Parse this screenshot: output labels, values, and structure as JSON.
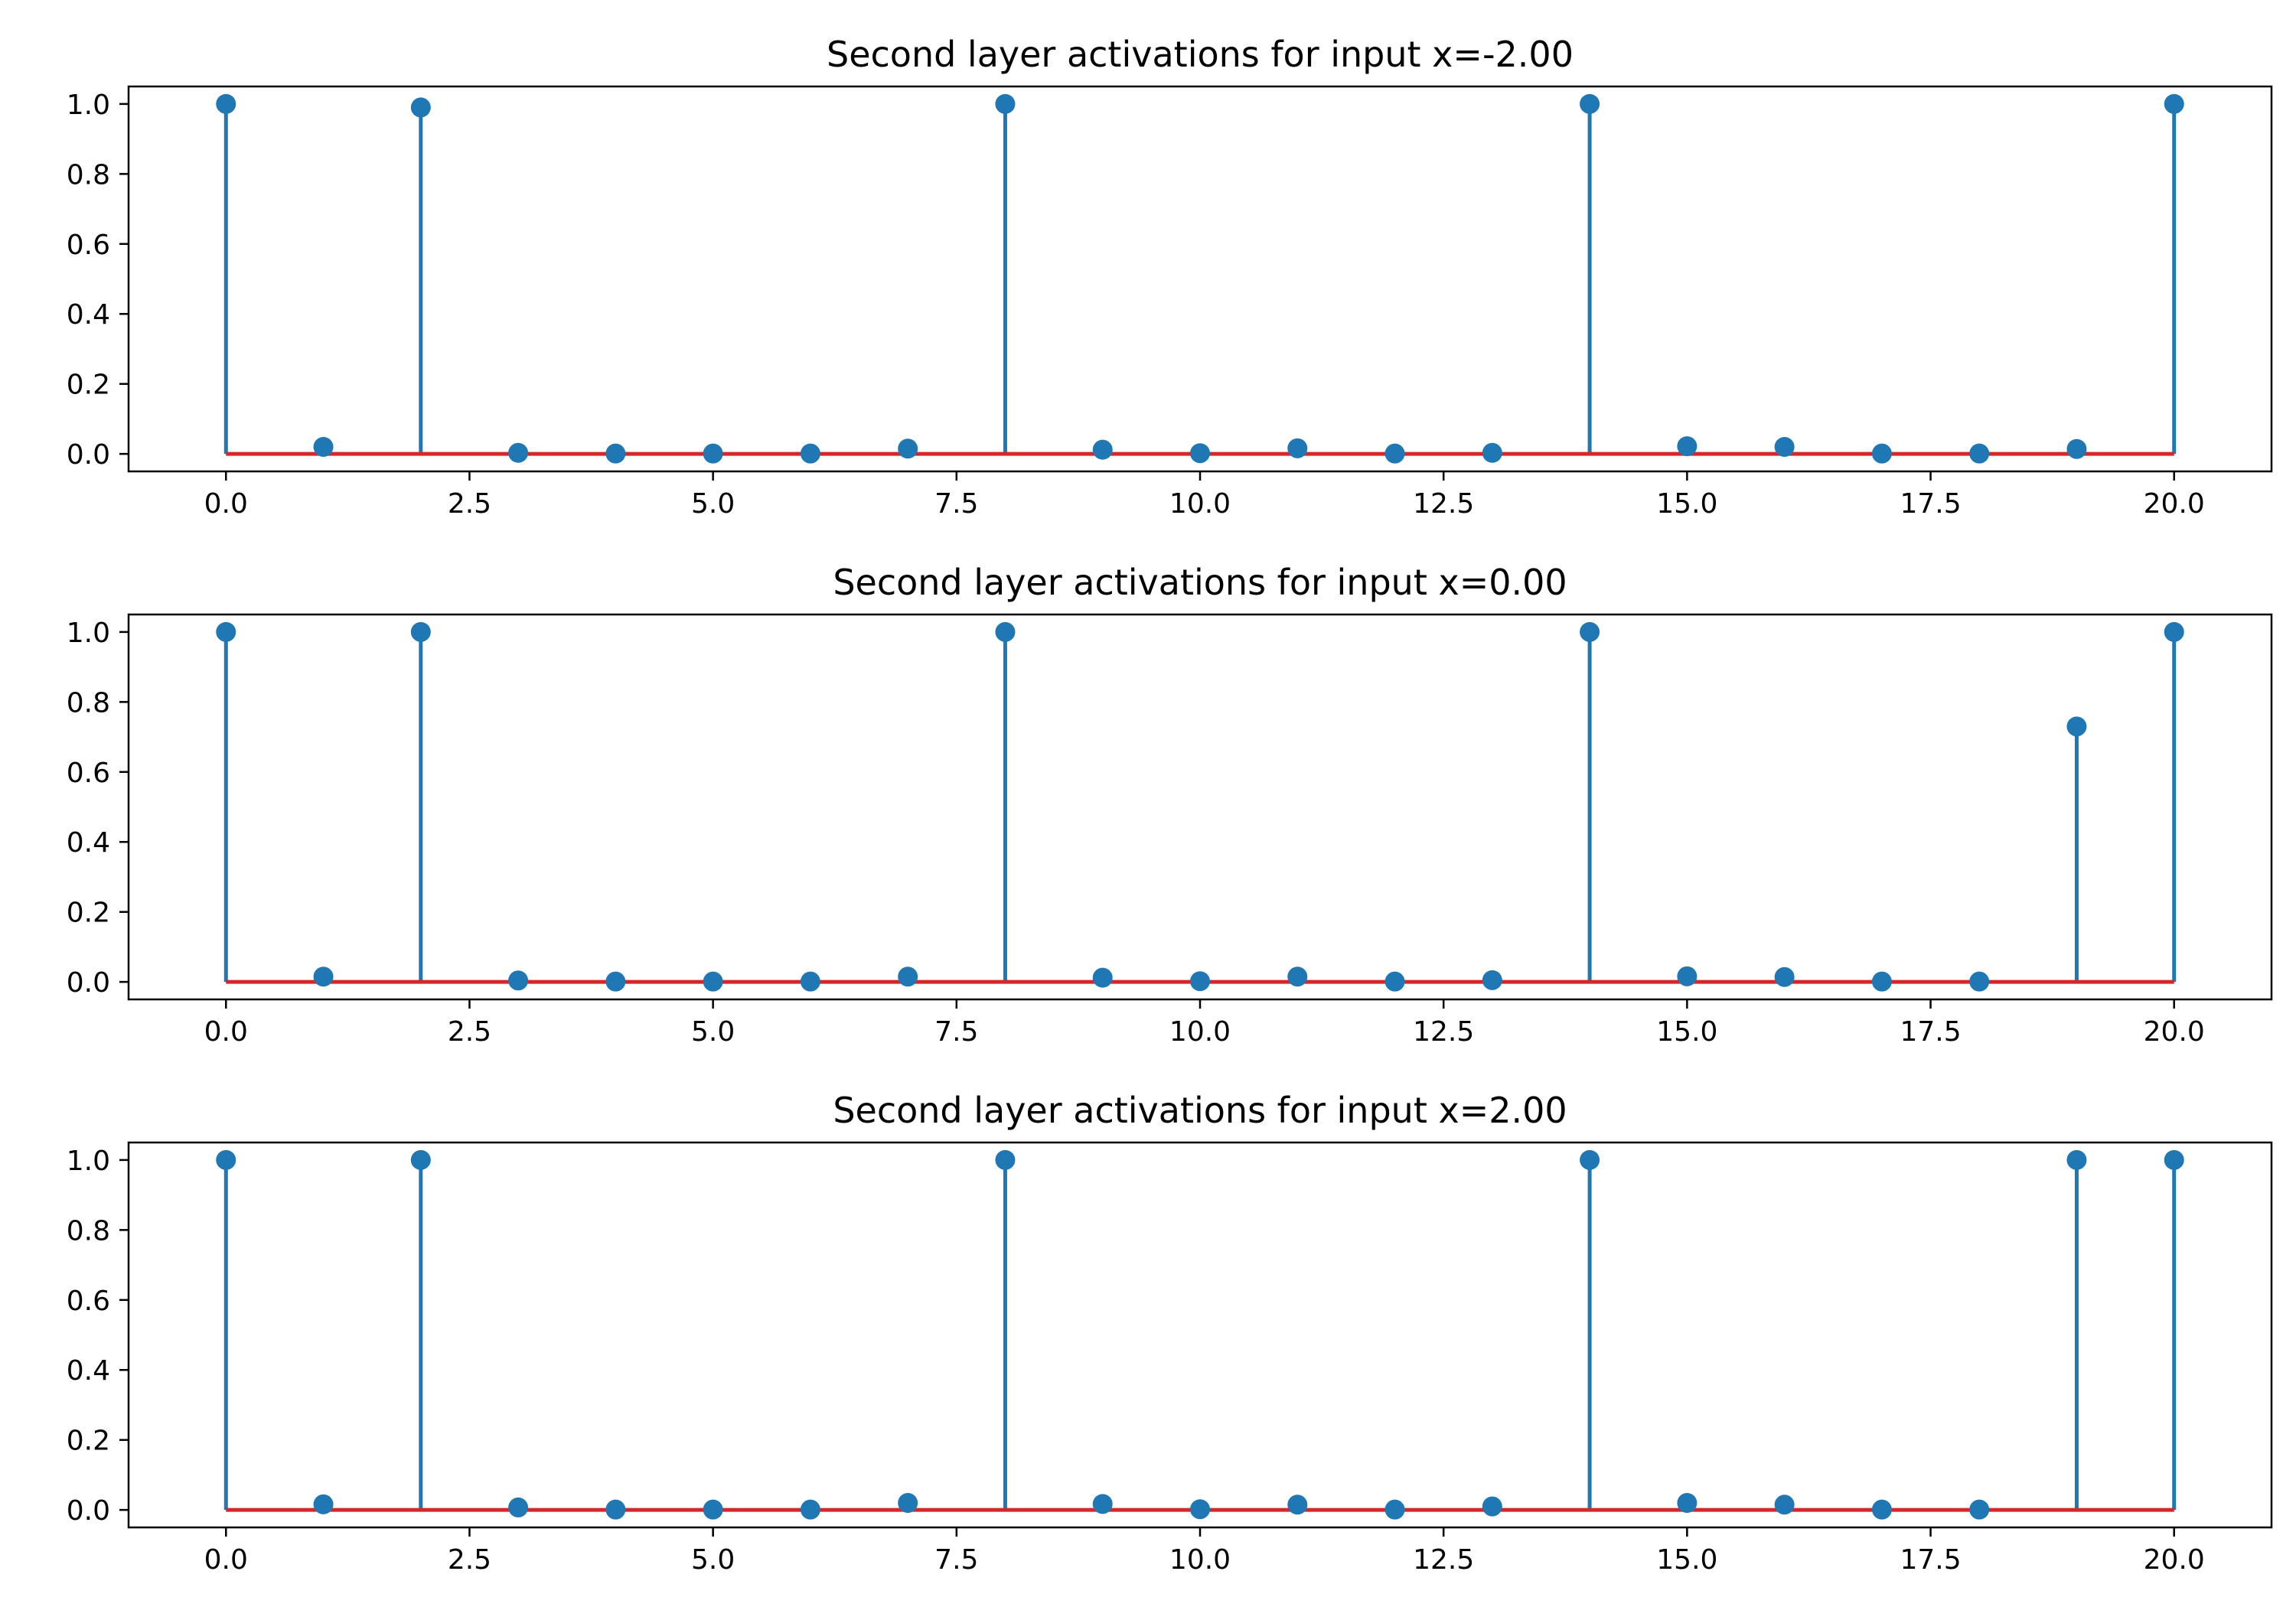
{
  "colors": {
    "stem": "#1f77b4",
    "marker": "#1f77b4",
    "baseline": "#d62728"
  },
  "chart_data": [
    {
      "type": "stem",
      "title": "Second layer activations for input x=-2.00",
      "xlabel": "",
      "ylabel": "",
      "xlim": [
        -1.0,
        21.0
      ],
      "ylim": [
        -0.05,
        1.05
      ],
      "xticks": [
        "0.0",
        "2.5",
        "5.0",
        "7.5",
        "10.0",
        "12.5",
        "15.0",
        "17.5",
        "20.0"
      ],
      "yticks": [
        "0.0",
        "0.2",
        "0.4",
        "0.6",
        "0.8",
        "1.0"
      ],
      "grid": false,
      "baseline": 0,
      "x": [
        0,
        1,
        2,
        3,
        4,
        5,
        6,
        7,
        8,
        9,
        10,
        11,
        12,
        13,
        14,
        15,
        16,
        17,
        18,
        19,
        20
      ],
      "values": [
        1.0,
        0.02,
        0.99,
        0.003,
        0.001,
        0.001,
        0.001,
        0.015,
        1.0,
        0.012,
        0.002,
        0.016,
        0.001,
        0.003,
        1.0,
        0.022,
        0.02,
        0.001,
        0.001,
        0.014,
        1.0
      ]
    },
    {
      "type": "stem",
      "title": "Second layer activations for input x=0.00",
      "xlabel": "",
      "ylabel": "",
      "xlim": [
        -1.0,
        21.0
      ],
      "ylim": [
        -0.05,
        1.05
      ],
      "xticks": [
        "0.0",
        "2.5",
        "5.0",
        "7.5",
        "10.0",
        "12.5",
        "15.0",
        "17.5",
        "20.0"
      ],
      "yticks": [
        "0.0",
        "0.2",
        "0.4",
        "0.6",
        "0.8",
        "1.0"
      ],
      "grid": false,
      "baseline": 0,
      "x": [
        0,
        1,
        2,
        3,
        4,
        5,
        6,
        7,
        8,
        9,
        10,
        11,
        12,
        13,
        14,
        15,
        16,
        17,
        18,
        19,
        20
      ],
      "values": [
        1.0,
        0.015,
        1.0,
        0.004,
        0.001,
        0.001,
        0.001,
        0.015,
        1.0,
        0.012,
        0.002,
        0.015,
        0.001,
        0.005,
        1.0,
        0.016,
        0.014,
        0.001,
        0.001,
        0.73,
        1.0
      ]
    },
    {
      "type": "stem",
      "title": "Second layer activations for input x=2.00",
      "xlabel": "",
      "ylabel": "",
      "xlim": [
        -1.0,
        21.0
      ],
      "ylim": [
        -0.05,
        1.05
      ],
      "xticks": [
        "0.0",
        "2.5",
        "5.0",
        "7.5",
        "10.0",
        "12.5",
        "15.0",
        "17.5",
        "20.0"
      ],
      "yticks": [
        "0.0",
        "0.2",
        "0.4",
        "0.6",
        "0.8",
        "1.0"
      ],
      "grid": false,
      "baseline": 0,
      "x": [
        0,
        1,
        2,
        3,
        4,
        5,
        6,
        7,
        8,
        9,
        10,
        11,
        12,
        13,
        14,
        15,
        16,
        17,
        18,
        19,
        20
      ],
      "values": [
        1.0,
        0.016,
        1.0,
        0.007,
        0.001,
        0.001,
        0.001,
        0.02,
        1.0,
        0.017,
        0.002,
        0.015,
        0.001,
        0.01,
        1.0,
        0.02,
        0.015,
        0.001,
        0.001,
        1.0,
        1.0
      ]
    }
  ]
}
